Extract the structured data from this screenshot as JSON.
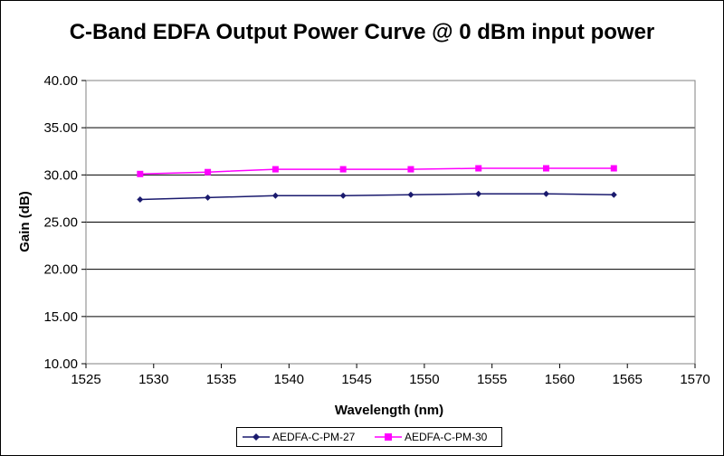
{
  "chart_data": {
    "type": "line",
    "title": "C-Band EDFA Output Power Curve @ 0 dBm input power",
    "xlabel": "Wavelength (nm)",
    "ylabel": "Gain (dB)",
    "xlim": [
      1525,
      1570
    ],
    "ylim": [
      10,
      40
    ],
    "x_ticks": [
      "1525",
      "1530",
      "1535",
      "1540",
      "1545",
      "1550",
      "1555",
      "1560",
      "1565",
      "1570"
    ],
    "y_ticks": [
      "10.00",
      "15.00",
      "20.00",
      "25.00",
      "30.00",
      "35.00",
      "40.00"
    ],
    "grid": "horizontal major gridlines",
    "legend_position": "bottom",
    "series": [
      {
        "name": "AEDFA-C-PM-27",
        "color": "#1a1a6e",
        "marker": "diamond",
        "x": [
          1529,
          1534,
          1539,
          1544,
          1549,
          1554,
          1559,
          1564
        ],
        "y": [
          27.4,
          27.6,
          27.8,
          27.8,
          27.9,
          28.0,
          28.0,
          27.9
        ]
      },
      {
        "name": "AEDFA-C-PM-30",
        "color": "#ff00ff",
        "marker": "square",
        "x": [
          1529,
          1534,
          1539,
          1544,
          1549,
          1554,
          1559,
          1564
        ],
        "y": [
          30.1,
          30.3,
          30.6,
          30.6,
          30.6,
          30.7,
          30.7,
          30.7
        ]
      }
    ]
  }
}
